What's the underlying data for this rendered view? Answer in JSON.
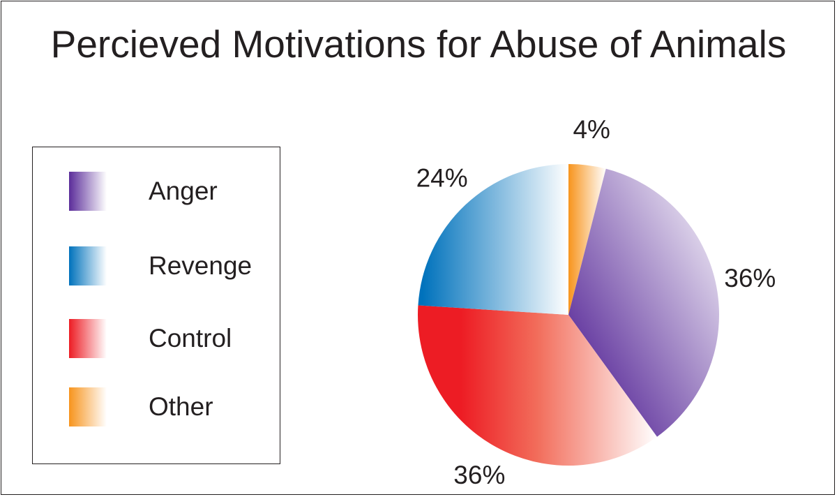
{
  "chart_data": {
    "type": "pie",
    "title": "Percieved Motivations for Abuse of Animals",
    "legend_position": "left",
    "slices": [
      {
        "label": "Anger",
        "value": 36,
        "display": "36%",
        "color": "#5b2d9a"
      },
      {
        "label": "Control",
        "value": 36,
        "display": "36%",
        "color": "#ed1c24"
      },
      {
        "label": "Revenge",
        "value": 24,
        "display": "24%",
        "color": "#0072bc"
      },
      {
        "label": "Other",
        "value": 4,
        "display": "4%",
        "color": "#f7941d"
      }
    ],
    "legend_order": [
      "Anger",
      "Revenge",
      "Control",
      "Other"
    ]
  }
}
